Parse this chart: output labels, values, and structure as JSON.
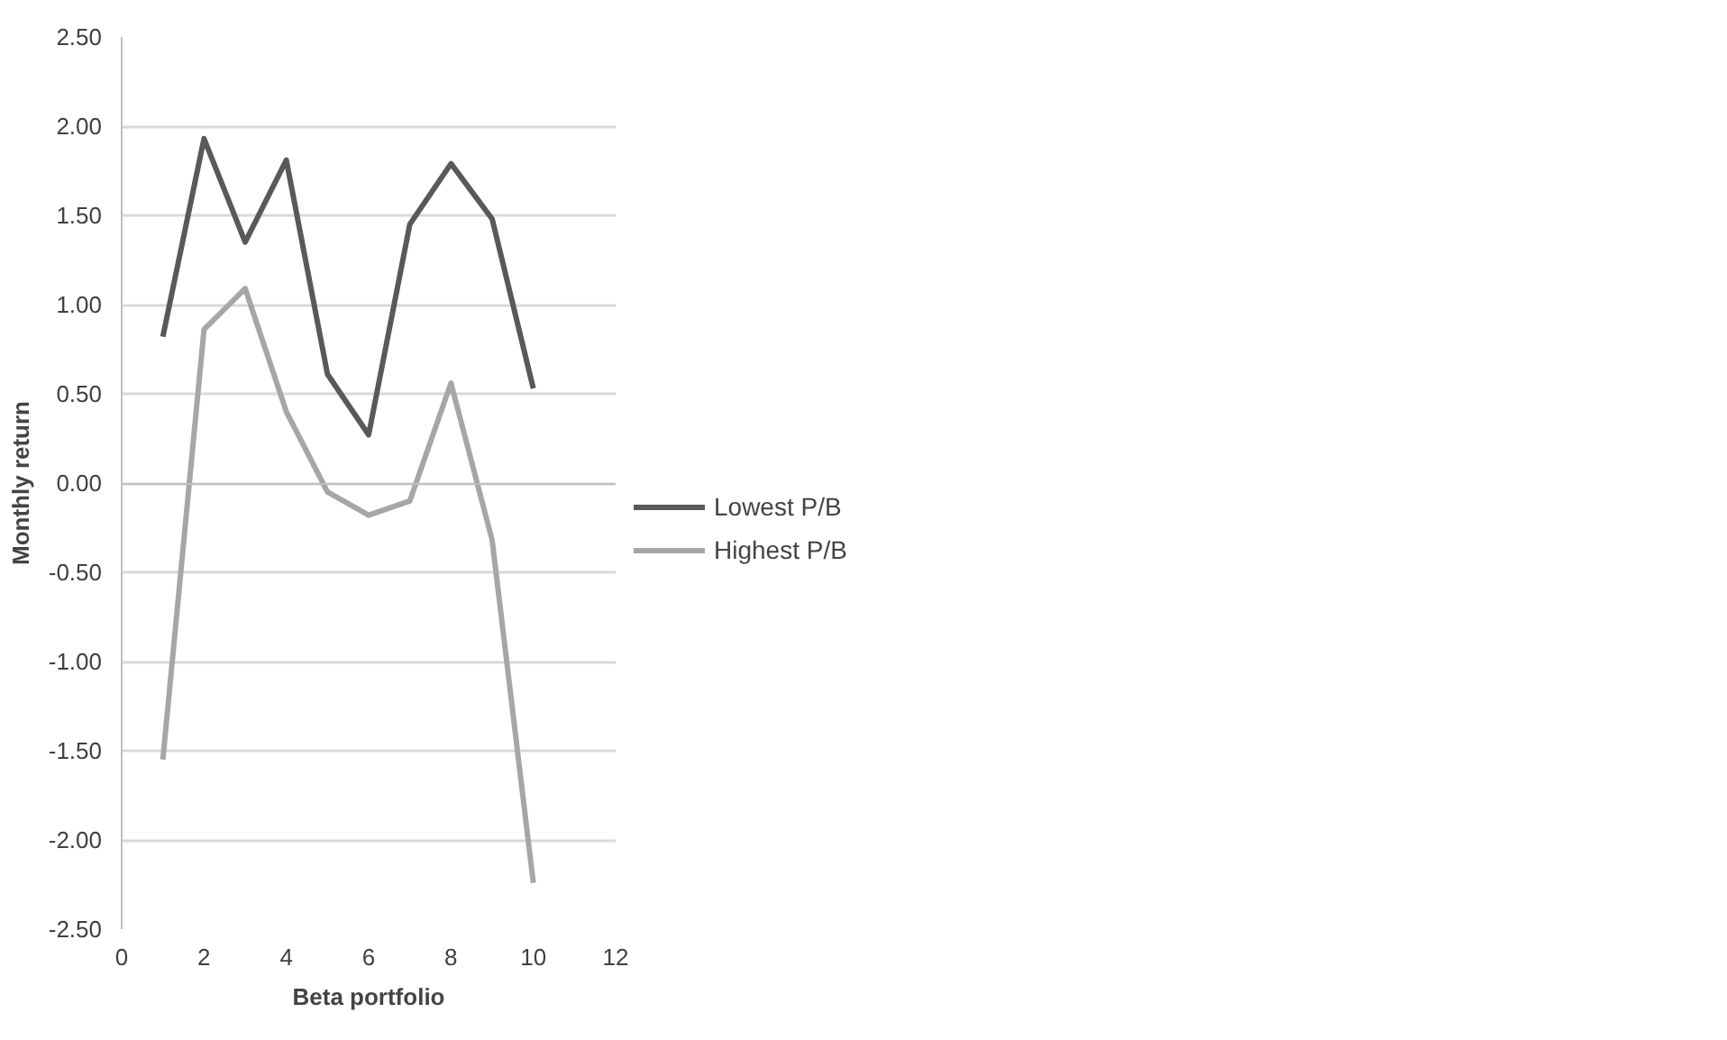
{
  "chart_data": {
    "type": "line",
    "xlabel": "Beta portfolio",
    "ylabel": "Monthly return",
    "x": [
      1,
      2,
      3,
      4,
      5,
      6,
      7,
      8,
      9,
      10
    ],
    "series": [
      {
        "name": "Lowest P/B",
        "color": "#595959",
        "values": [
          0.82,
          1.93,
          1.35,
          1.81,
          0.61,
          0.27,
          1.45,
          1.79,
          1.48,
          0.53
        ]
      },
      {
        "name": "Highest P/B",
        "color": "#a6a6a6",
        "values": [
          -1.55,
          0.86,
          1.09,
          0.4,
          -0.05,
          -0.18,
          -0.1,
          0.56,
          -0.32,
          -2.24
        ]
      }
    ],
    "xlim": [
      0,
      12
    ],
    "xticks": [
      0,
      2,
      4,
      6,
      8,
      10,
      12
    ],
    "ylim": [
      -2.5,
      2.5
    ],
    "yticks": [
      {
        "value": -2.5,
        "label": "-2.50"
      },
      {
        "value": -2.0,
        "label": "-2.00"
      },
      {
        "value": -1.5,
        "label": "-1.50"
      },
      {
        "value": -1.0,
        "label": "-1.00"
      },
      {
        "value": -0.5,
        "label": "-0.50"
      },
      {
        "value": 0,
        "label": "0.00"
      },
      {
        "value": 0.5,
        "label": "0.50"
      },
      {
        "value": 1.0,
        "label": "1.00"
      },
      {
        "value": 1.5,
        "label": "1.50"
      },
      {
        "value": 2.0,
        "label": "2.00"
      },
      {
        "value": 2.5,
        "label": "2.50"
      }
    ],
    "grid": "y",
    "legend": "right",
    "marker": "none",
    "line_style": "solid"
  }
}
